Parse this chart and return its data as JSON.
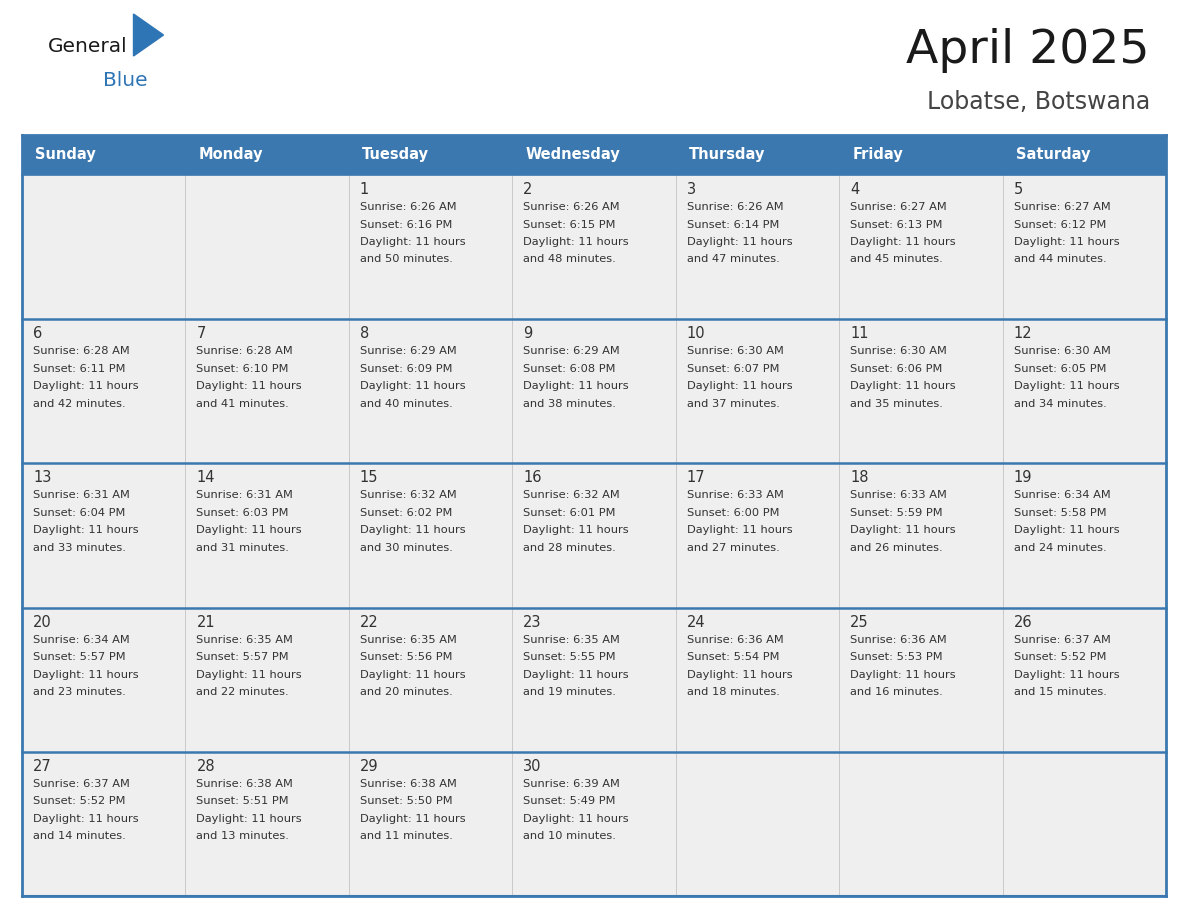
{
  "title": "April 2025",
  "subtitle": "Lobatse, Botswana",
  "header_bg_color": "#3C78B0",
  "header_text_color": "#FFFFFF",
  "cell_bg": "#EFEFEF",
  "outer_bg": "#FFFFFF",
  "day_names": [
    "Sunday",
    "Monday",
    "Tuesday",
    "Wednesday",
    "Thursday",
    "Friday",
    "Saturday"
  ],
  "text_color": "#333333",
  "line_color": "#3C78B0",
  "row_line_color": "#3C78B0",
  "calendar_data": [
    [
      {
        "day": "",
        "sunrise": "",
        "sunset": "",
        "daylight": ""
      },
      {
        "day": "",
        "sunrise": "",
        "sunset": "",
        "daylight": ""
      },
      {
        "day": "1",
        "sunrise": "6:26 AM",
        "sunset": "6:16 PM",
        "daylight": "11 hours and 50 minutes."
      },
      {
        "day": "2",
        "sunrise": "6:26 AM",
        "sunset": "6:15 PM",
        "daylight": "11 hours and 48 minutes."
      },
      {
        "day": "3",
        "sunrise": "6:26 AM",
        "sunset": "6:14 PM",
        "daylight": "11 hours and 47 minutes."
      },
      {
        "day": "4",
        "sunrise": "6:27 AM",
        "sunset": "6:13 PM",
        "daylight": "11 hours and 45 minutes."
      },
      {
        "day": "5",
        "sunrise": "6:27 AM",
        "sunset": "6:12 PM",
        "daylight": "11 hours and 44 minutes."
      }
    ],
    [
      {
        "day": "6",
        "sunrise": "6:28 AM",
        "sunset": "6:11 PM",
        "daylight": "11 hours and 42 minutes."
      },
      {
        "day": "7",
        "sunrise": "6:28 AM",
        "sunset": "6:10 PM",
        "daylight": "11 hours and 41 minutes."
      },
      {
        "day": "8",
        "sunrise": "6:29 AM",
        "sunset": "6:09 PM",
        "daylight": "11 hours and 40 minutes."
      },
      {
        "day": "9",
        "sunrise": "6:29 AM",
        "sunset": "6:08 PM",
        "daylight": "11 hours and 38 minutes."
      },
      {
        "day": "10",
        "sunrise": "6:30 AM",
        "sunset": "6:07 PM",
        "daylight": "11 hours and 37 minutes."
      },
      {
        "day": "11",
        "sunrise": "6:30 AM",
        "sunset": "6:06 PM",
        "daylight": "11 hours and 35 minutes."
      },
      {
        "day": "12",
        "sunrise": "6:30 AM",
        "sunset": "6:05 PM",
        "daylight": "11 hours and 34 minutes."
      }
    ],
    [
      {
        "day": "13",
        "sunrise": "6:31 AM",
        "sunset": "6:04 PM",
        "daylight": "11 hours and 33 minutes."
      },
      {
        "day": "14",
        "sunrise": "6:31 AM",
        "sunset": "6:03 PM",
        "daylight": "11 hours and 31 minutes."
      },
      {
        "day": "15",
        "sunrise": "6:32 AM",
        "sunset": "6:02 PM",
        "daylight": "11 hours and 30 minutes."
      },
      {
        "day": "16",
        "sunrise": "6:32 AM",
        "sunset": "6:01 PM",
        "daylight": "11 hours and 28 minutes."
      },
      {
        "day": "17",
        "sunrise": "6:33 AM",
        "sunset": "6:00 PM",
        "daylight": "11 hours and 27 minutes."
      },
      {
        "day": "18",
        "sunrise": "6:33 AM",
        "sunset": "5:59 PM",
        "daylight": "11 hours and 26 minutes."
      },
      {
        "day": "19",
        "sunrise": "6:34 AM",
        "sunset": "5:58 PM",
        "daylight": "11 hours and 24 minutes."
      }
    ],
    [
      {
        "day": "20",
        "sunrise": "6:34 AM",
        "sunset": "5:57 PM",
        "daylight": "11 hours and 23 minutes."
      },
      {
        "day": "21",
        "sunrise": "6:35 AM",
        "sunset": "5:57 PM",
        "daylight": "11 hours and 22 minutes."
      },
      {
        "day": "22",
        "sunrise": "6:35 AM",
        "sunset": "5:56 PM",
        "daylight": "11 hours and 20 minutes."
      },
      {
        "day": "23",
        "sunrise": "6:35 AM",
        "sunset": "5:55 PM",
        "daylight": "11 hours and 19 minutes."
      },
      {
        "day": "24",
        "sunrise": "6:36 AM",
        "sunset": "5:54 PM",
        "daylight": "11 hours and 18 minutes."
      },
      {
        "day": "25",
        "sunrise": "6:36 AM",
        "sunset": "5:53 PM",
        "daylight": "11 hours and 16 minutes."
      },
      {
        "day": "26",
        "sunrise": "6:37 AM",
        "sunset": "5:52 PM",
        "daylight": "11 hours and 15 minutes."
      }
    ],
    [
      {
        "day": "27",
        "sunrise": "6:37 AM",
        "sunset": "5:52 PM",
        "daylight": "11 hours and 14 minutes."
      },
      {
        "day": "28",
        "sunrise": "6:38 AM",
        "sunset": "5:51 PM",
        "daylight": "11 hours and 13 minutes."
      },
      {
        "day": "29",
        "sunrise": "6:38 AM",
        "sunset": "5:50 PM",
        "daylight": "11 hours and 11 minutes."
      },
      {
        "day": "30",
        "sunrise": "6:39 AM",
        "sunset": "5:49 PM",
        "daylight": "11 hours and 10 minutes."
      },
      {
        "day": "",
        "sunrise": "",
        "sunset": "",
        "daylight": ""
      },
      {
        "day": "",
        "sunrise": "",
        "sunset": "",
        "daylight": ""
      },
      {
        "day": "",
        "sunrise": "",
        "sunset": "",
        "daylight": ""
      }
    ]
  ]
}
